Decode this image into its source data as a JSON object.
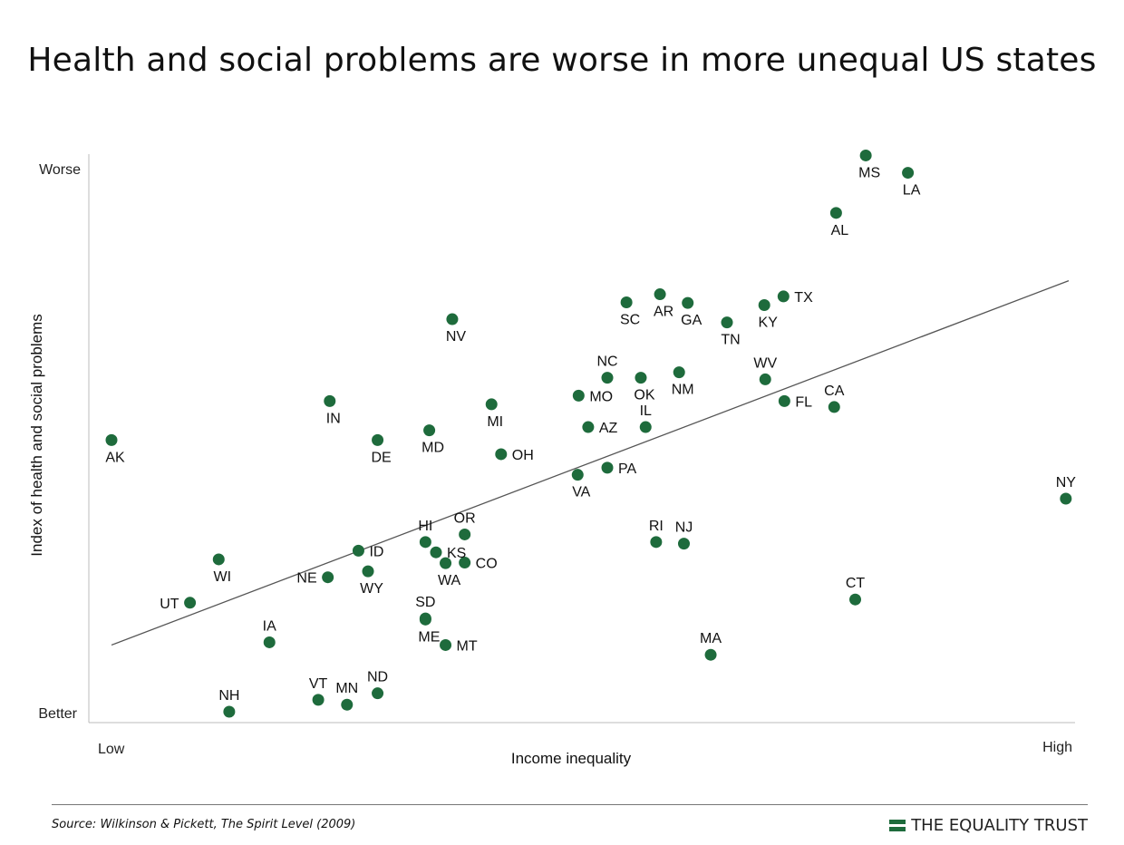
{
  "title": "Health and social problems are worse in more unequal US states",
  "source": "Source: Wilkinson & Pickett, The Spirit Level (2009)",
  "brand": {
    "text": "THE EQUALITY TRUST",
    "mark_color": "#1e6b3c"
  },
  "colors": {
    "point": "#1e6b3c",
    "trendline": "#555555",
    "axis": "#bbbbbb"
  },
  "chart_data": {
    "type": "scatter",
    "xlabel": "Income inequality",
    "ylabel": "Index of health and social problems",
    "x_tick_labels": {
      "low": "Low",
      "high": "High"
    },
    "y_tick_labels": {
      "low": "Better",
      "high": "Worse"
    },
    "xlim": [
      0,
      100
    ],
    "ylim": [
      0,
      100
    ],
    "grid": false,
    "legend": "none",
    "trendline": {
      "x": [
        0,
        100
      ],
      "y": [
        12.3,
        79.5
      ]
    },
    "points": [
      {
        "label": "MS",
        "x": 78.8,
        "y": 102.6,
        "lpos": "s"
      },
      {
        "label": "LA",
        "x": 83.2,
        "y": 99.4,
        "lpos": "s"
      },
      {
        "label": "AL",
        "x": 75.7,
        "y": 92.0,
        "lpos": "s"
      },
      {
        "label": "TX",
        "x": 70.2,
        "y": 76.6,
        "lpos": "e"
      },
      {
        "label": "AR",
        "x": 57.3,
        "y": 77.0,
        "lpos": "s"
      },
      {
        "label": "SC",
        "x": 53.8,
        "y": 75.5,
        "lpos": "s"
      },
      {
        "label": "GA",
        "x": 60.2,
        "y": 75.4,
        "lpos": "s"
      },
      {
        "label": "KY",
        "x": 68.2,
        "y": 75.0,
        "lpos": "s"
      },
      {
        "label": "TN",
        "x": 64.3,
        "y": 71.8,
        "lpos": "s"
      },
      {
        "label": "NV",
        "x": 35.6,
        "y": 72.4,
        "lpos": "s"
      },
      {
        "label": "NC",
        "x": 51.8,
        "y": 61.6,
        "lpos": "n"
      },
      {
        "label": "OK",
        "x": 55.3,
        "y": 61.6,
        "lpos": "s"
      },
      {
        "label": "NM",
        "x": 59.3,
        "y": 62.6,
        "lpos": "s"
      },
      {
        "label": "WV",
        "x": 68.3,
        "y": 61.3,
        "lpos": "n"
      },
      {
        "label": "MO",
        "x": 48.8,
        "y": 58.3,
        "lpos": "e"
      },
      {
        "label": "FL",
        "x": 70.3,
        "y": 57.3,
        "lpos": "e"
      },
      {
        "label": "CA",
        "x": 75.5,
        "y": 56.2,
        "lpos": "n"
      },
      {
        "label": "IN",
        "x": 22.8,
        "y": 57.3,
        "lpos": "s"
      },
      {
        "label": "MI",
        "x": 39.7,
        "y": 56.7,
        "lpos": "s"
      },
      {
        "label": "IL",
        "x": 55.8,
        "y": 52.5,
        "lpos": "n"
      },
      {
        "label": "AZ",
        "x": 49.8,
        "y": 52.5,
        "lpos": "e"
      },
      {
        "label": "MD",
        "x": 33.2,
        "y": 51.9,
        "lpos": "s"
      },
      {
        "label": "AK",
        "x": 0.0,
        "y": 50.1,
        "lpos": "s"
      },
      {
        "label": "DE",
        "x": 27.8,
        "y": 50.1,
        "lpos": "s"
      },
      {
        "label": "OH",
        "x": 40.7,
        "y": 47.5,
        "lpos": "e"
      },
      {
        "label": "PA",
        "x": 51.8,
        "y": 45.0,
        "lpos": "e"
      },
      {
        "label": "VA",
        "x": 48.7,
        "y": 43.7,
        "lpos": "s"
      },
      {
        "label": "NY",
        "x": 99.7,
        "y": 39.3,
        "lpos": "n"
      },
      {
        "label": "OR",
        "x": 36.9,
        "y": 32.7,
        "lpos": "n"
      },
      {
        "label": "RI",
        "x": 56.9,
        "y": 31.3,
        "lpos": "n"
      },
      {
        "label": "NJ",
        "x": 59.8,
        "y": 31.0,
        "lpos": "n"
      },
      {
        "label": "HI",
        "x": 32.8,
        "y": 31.3,
        "lpos": "n"
      },
      {
        "label": "ID",
        "x": 25.8,
        "y": 29.7,
        "lpos": "e"
      },
      {
        "label": "KS",
        "x": 33.9,
        "y": 29.4,
        "lpos": "e"
      },
      {
        "label": "CO",
        "x": 36.9,
        "y": 27.5,
        "lpos": "e"
      },
      {
        "label": "WA",
        "x": 34.9,
        "y": 27.4,
        "lpos": "s"
      },
      {
        "label": "WI",
        "x": 11.2,
        "y": 28.1,
        "lpos": "s"
      },
      {
        "label": "WY",
        "x": 26.8,
        "y": 25.9,
        "lpos": "s"
      },
      {
        "label": "NE",
        "x": 22.6,
        "y": 24.8,
        "lpos": "w"
      },
      {
        "label": "CT",
        "x": 77.7,
        "y": 20.7,
        "lpos": "n"
      },
      {
        "label": "UT",
        "x": 8.2,
        "y": 20.1,
        "lpos": "w"
      },
      {
        "label": "SD",
        "x": 32.8,
        "y": 17.2,
        "lpos": "n"
      },
      {
        "label": "ME",
        "x": 32.8,
        "y": 17.0,
        "lpos": "s"
      },
      {
        "label": "IA",
        "x": 16.5,
        "y": 12.8,
        "lpos": "n"
      },
      {
        "label": "MT",
        "x": 34.9,
        "y": 12.3,
        "lpos": "e"
      },
      {
        "label": "MA",
        "x": 62.6,
        "y": 10.5,
        "lpos": "n"
      },
      {
        "label": "ND",
        "x": 27.8,
        "y": 3.4,
        "lpos": "n"
      },
      {
        "label": "VT",
        "x": 21.6,
        "y": 2.2,
        "lpos": "n"
      },
      {
        "label": "MN",
        "x": 24.6,
        "y": 1.3,
        "lpos": "n"
      },
      {
        "label": "NH",
        "x": 12.3,
        "y": 0.0,
        "lpos": "n"
      }
    ]
  }
}
